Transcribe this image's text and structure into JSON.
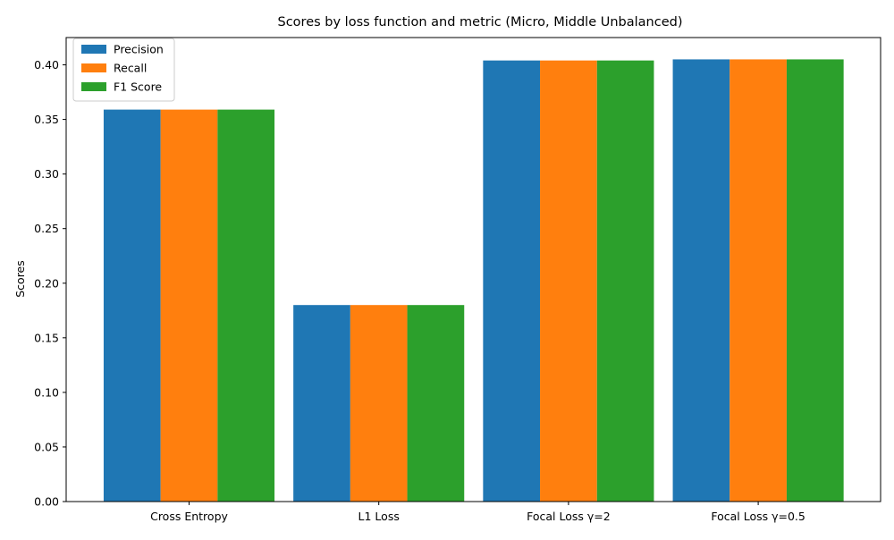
{
  "chart_data": {
    "type": "bar",
    "title": "Scores by loss function and metric (Micro, Middle Unbalanced)",
    "xlabel": "",
    "ylabel": "Scores",
    "categories": [
      "Cross Entropy",
      "L1 Loss",
      "Focal Loss γ=2",
      "Focal Loss γ=0.5"
    ],
    "series": [
      {
        "name": "Precision",
        "color": "#1f77b4",
        "values": [
          0.359,
          0.18,
          0.404,
          0.405
        ]
      },
      {
        "name": "Recall",
        "color": "#ff7f0e",
        "values": [
          0.359,
          0.18,
          0.404,
          0.405
        ]
      },
      {
        "name": "F1 Score",
        "color": "#2ca02c",
        "values": [
          0.359,
          0.18,
          0.404,
          0.405
        ]
      }
    ],
    "ylim": [
      0,
      0.425
    ],
    "yticks": [
      0.0,
      0.05,
      0.1,
      0.15,
      0.2,
      0.25,
      0.3,
      0.35,
      0.4
    ],
    "ytick_labels": [
      "0.00",
      "0.05",
      "0.10",
      "0.15",
      "0.20",
      "0.25",
      "0.30",
      "0.35",
      "0.40"
    ],
    "grid": false,
    "legend_position": "top-left"
  }
}
